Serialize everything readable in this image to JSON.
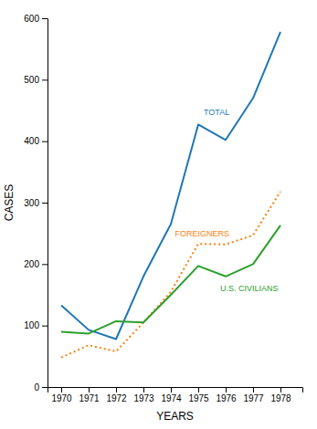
{
  "chart_data": {
    "type": "line",
    "x": [
      1970,
      1971,
      1972,
      1973,
      1974,
      1975,
      1976,
      1977,
      1978
    ],
    "xlim": [
      1969.5,
      1978.8
    ],
    "xticks": [
      1970,
      1971,
      1972,
      1973,
      1974,
      1975,
      1976,
      1977,
      1978
    ],
    "ylim": [
      0,
      600
    ],
    "yticks": [
      0,
      100,
      200,
      300,
      400,
      500,
      600
    ],
    "x_label": "YEARS",
    "y_label": "CASES",
    "grid": false,
    "series": [
      {
        "name": "TOTAL",
        "line_style": "solid",
        "values": [
          133,
          93,
          78,
          180,
          265,
          427,
          402,
          470,
          578
        ]
      },
      {
        "name": "FOREIGNERS",
        "line_style": "dotted",
        "values": [
          48,
          68,
          58,
          105,
          155,
          233,
          232,
          247,
          318
        ]
      },
      {
        "name": "U.S. CIVILIANS",
        "line_style": "solid",
        "values": [
          90,
          87,
          107,
          105,
          150,
          197,
          180,
          200,
          263
        ]
      }
    ]
  }
}
